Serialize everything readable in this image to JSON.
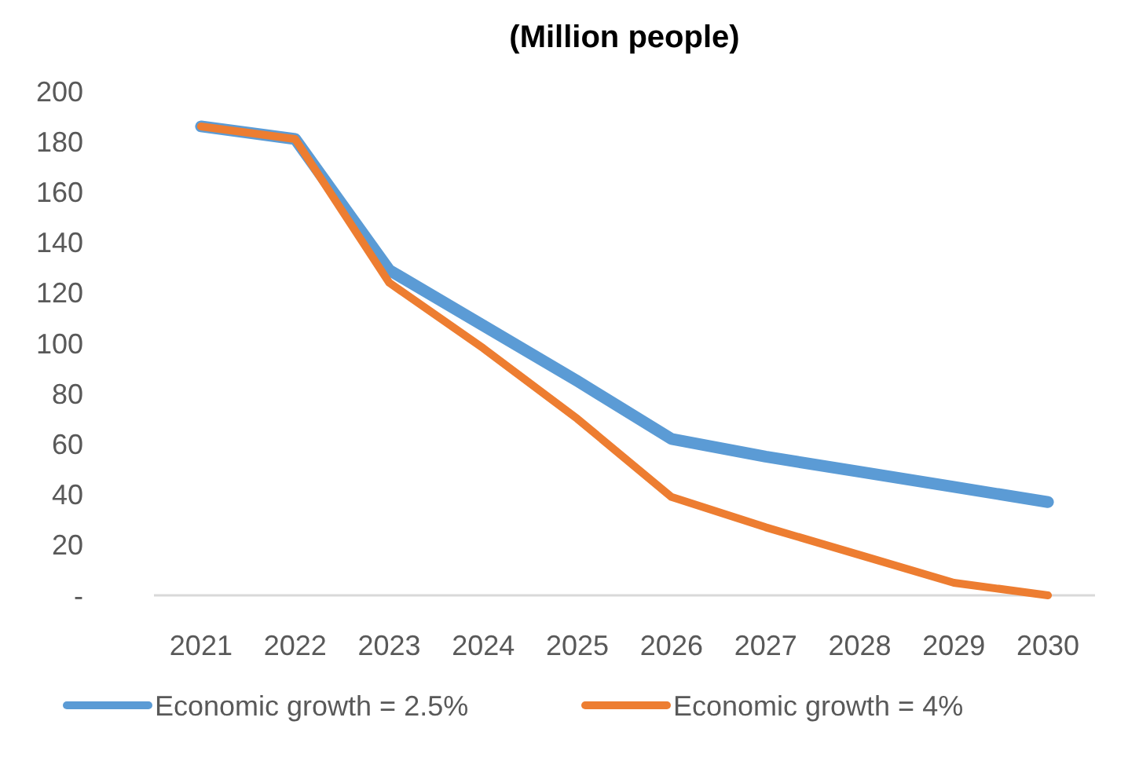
{
  "chart_data": {
    "type": "line",
    "title": "(Million people)",
    "categories": [
      "2021",
      "2022",
      "2023",
      "2024",
      "2025",
      "2026",
      "2027",
      "2028",
      "2029",
      "2030"
    ],
    "series": [
      {
        "name": "Economic growth = 2.5%",
        "color": "#5b9bd5",
        "values": [
          186,
          181,
          129,
          107,
          85,
          62,
          55,
          49,
          43,
          37
        ]
      },
      {
        "name": "Economic growth = 4%",
        "color": "#ed7d31",
        "values": [
          186,
          181,
          124,
          98,
          70,
          39,
          27,
          16,
          5,
          0
        ]
      }
    ],
    "ylim": [
      0,
      200
    ],
    "yticks": [
      {
        "value": 0,
        "label": "-"
      },
      20,
      40,
      60,
      80,
      100,
      120,
      140,
      160,
      180,
      200
    ],
    "grid": false,
    "legend": "bottom",
    "marker": "none",
    "line_style": "solid"
  }
}
